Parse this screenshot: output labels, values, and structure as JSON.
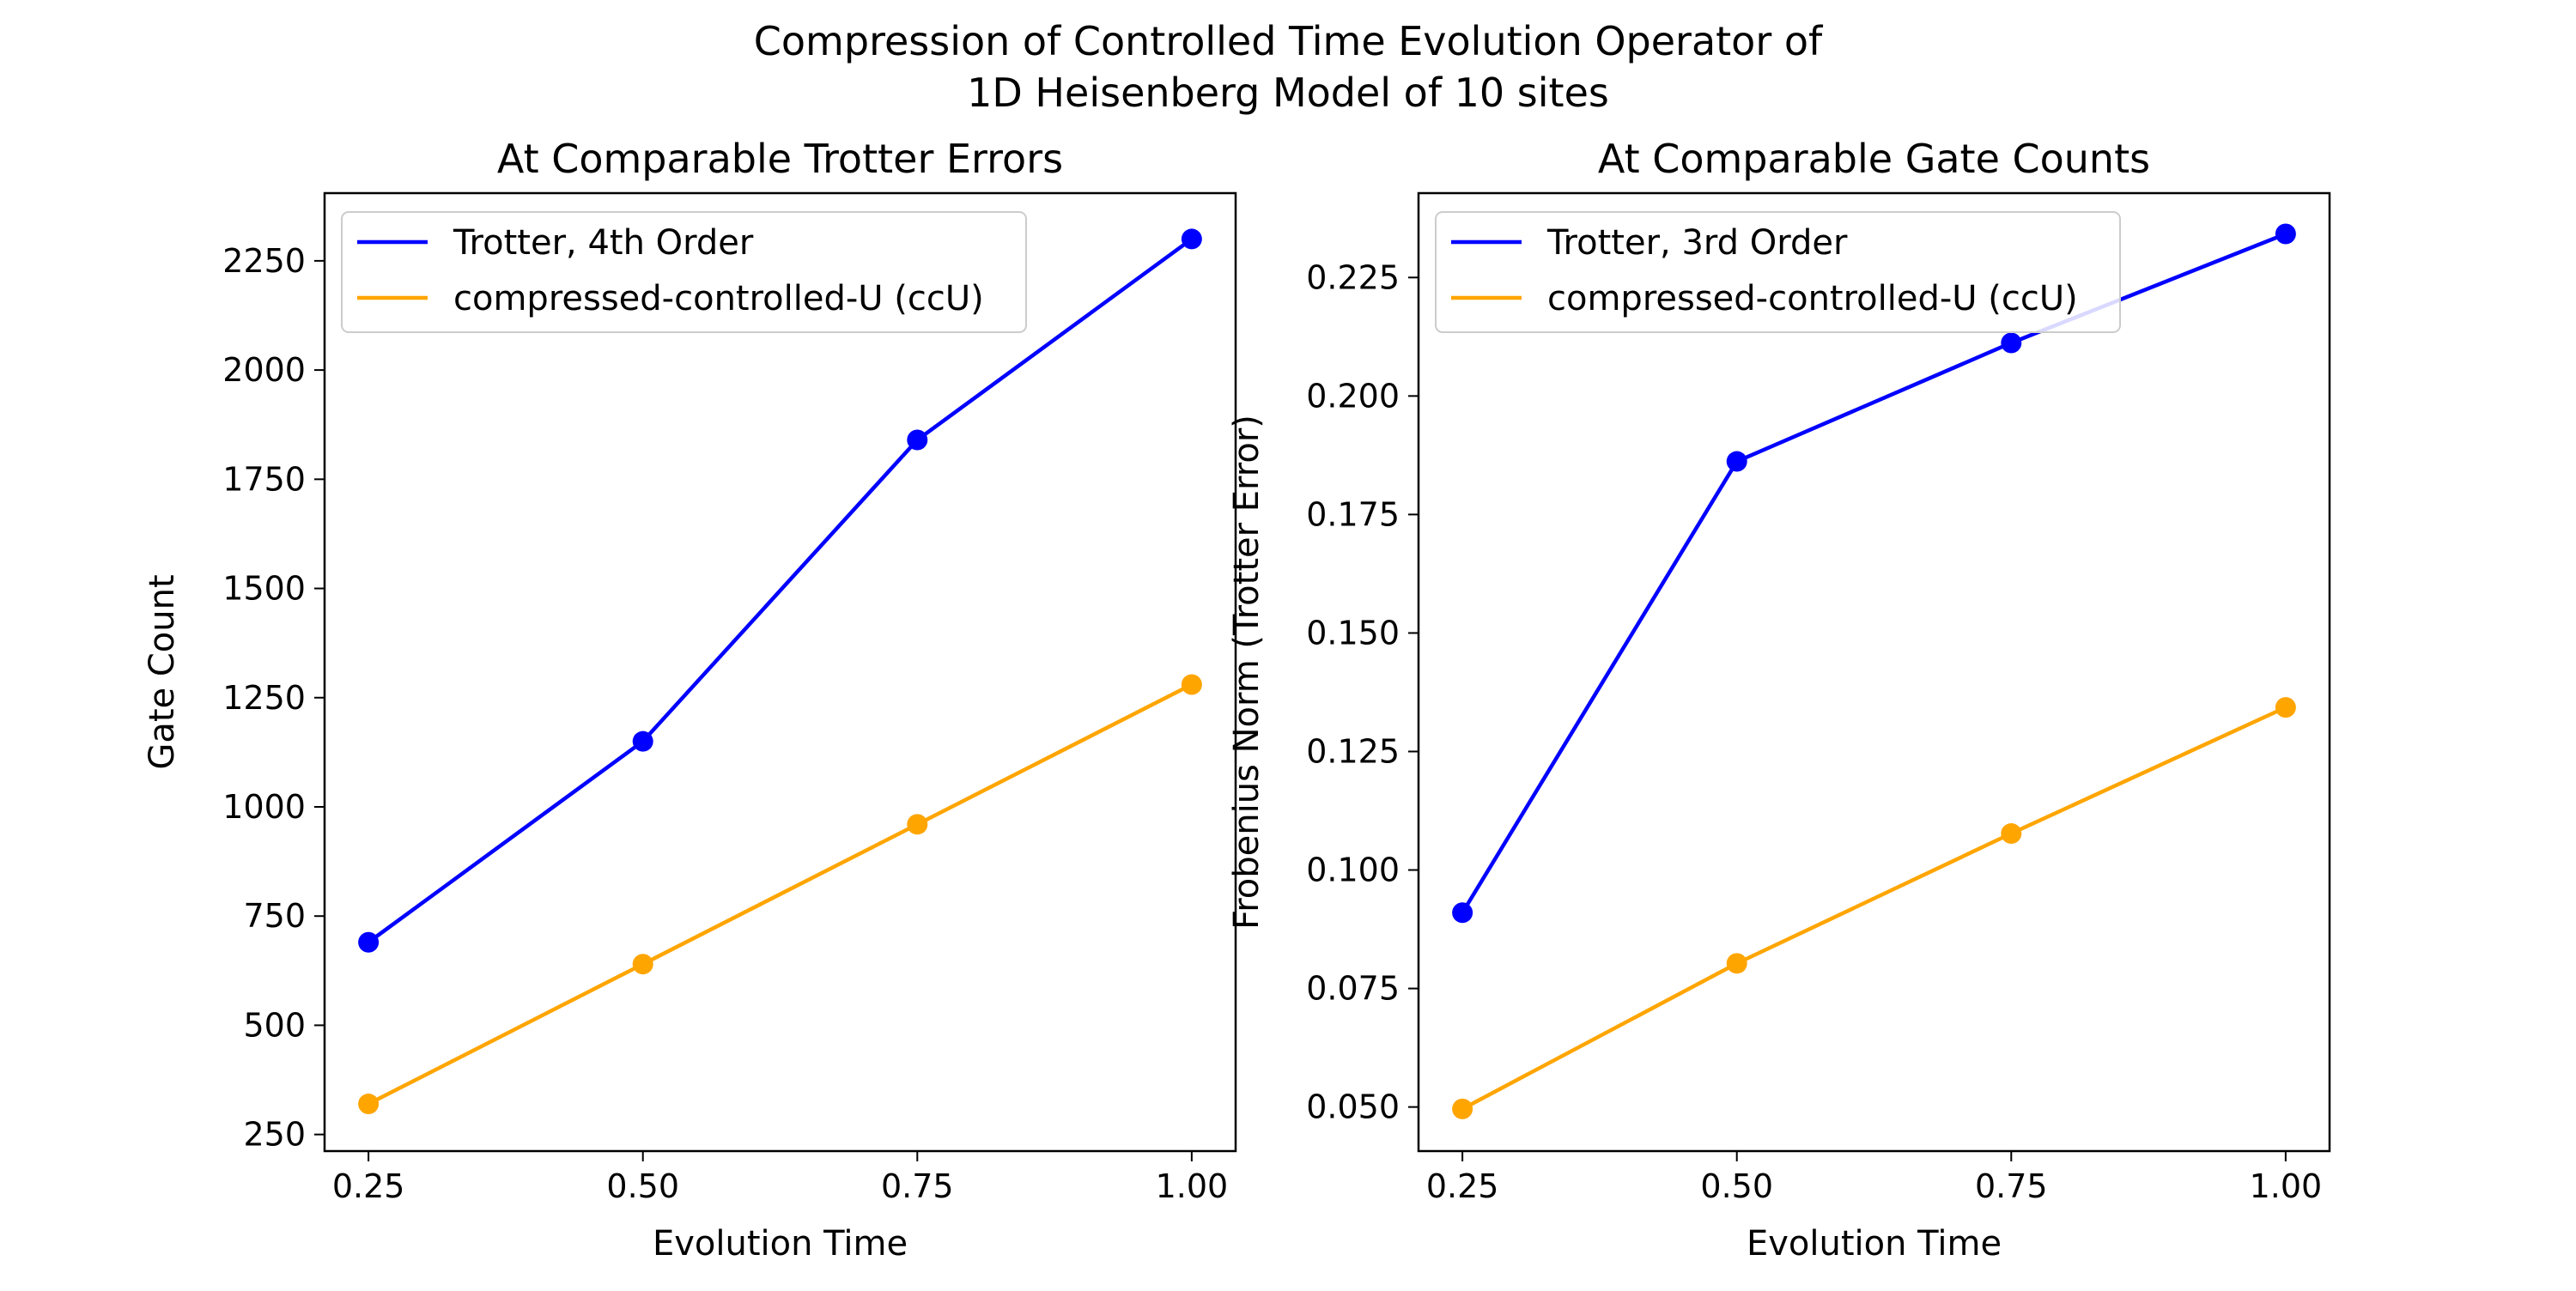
{
  "figure": {
    "suptitle": "Compression of Controlled Time Evolution Operator of\n1D Heisenberg Model of 10 sites"
  },
  "chart_data": [
    {
      "type": "line",
      "title": "At Comparable Trotter Errors",
      "xlabel": "Evolution Time",
      "ylabel": "Gate Count",
      "x": [
        0.25,
        0.5,
        0.75,
        1.0
      ],
      "xlim": [
        0.21,
        1.04
      ],
      "ylim": [
        212,
        2405
      ],
      "xticks": [
        0.25,
        0.5,
        0.75,
        1.0
      ],
      "xtick_labels": [
        "0.25",
        "0.50",
        "0.75",
        "1.00"
      ],
      "yticks": [
        250,
        500,
        750,
        1000,
        1250,
        1500,
        1750,
        2000,
        2250
      ],
      "ytick_labels": [
        "250",
        "500",
        "750",
        "1000",
        "1250",
        "1500",
        "1750",
        "2000",
        "2250"
      ],
      "legend_position": "upper-left",
      "grid": false,
      "series": [
        {
          "name": "Trotter, 4th Order",
          "color": "#0000ff",
          "values": [
            690,
            1150,
            1840,
            2300
          ]
        },
        {
          "name": "compressed-controlled-U (ccU)",
          "color": "#ffa500",
          "values": [
            320,
            640,
            960,
            1280
          ]
        }
      ]
    },
    {
      "type": "line",
      "title": "At Comparable Gate Counts",
      "xlabel": "Evolution Time",
      "ylabel": "Frobenius Norm (Trotter Error)",
      "x": [
        0.25,
        0.5,
        0.75,
        1.0
      ],
      "xlim": [
        0.21,
        1.04
      ],
      "ylim": [
        0.0407,
        0.2428
      ],
      "xticks": [
        0.25,
        0.5,
        0.75,
        1.0
      ],
      "xtick_labels": [
        "0.25",
        "0.50",
        "0.75",
        "1.00"
      ],
      "yticks": [
        0.05,
        0.075,
        0.1,
        0.125,
        0.15,
        0.175,
        0.2,
        0.225
      ],
      "ytick_labels": [
        "0.050",
        "0.075",
        "0.100",
        "0.125",
        "0.150",
        "0.175",
        "0.200",
        "0.225"
      ],
      "legend_position": "upper-left",
      "grid": false,
      "series": [
        {
          "name": "Trotter, 3rd Order",
          "color": "#0000ff",
          "values": [
            0.091,
            0.1862,
            0.2112,
            0.2342
          ]
        },
        {
          "name": "compressed-controlled-U (ccU)",
          "color": "#ffa500",
          "values": [
            0.0496,
            0.0803,
            0.1077,
            0.1343
          ]
        }
      ]
    }
  ]
}
